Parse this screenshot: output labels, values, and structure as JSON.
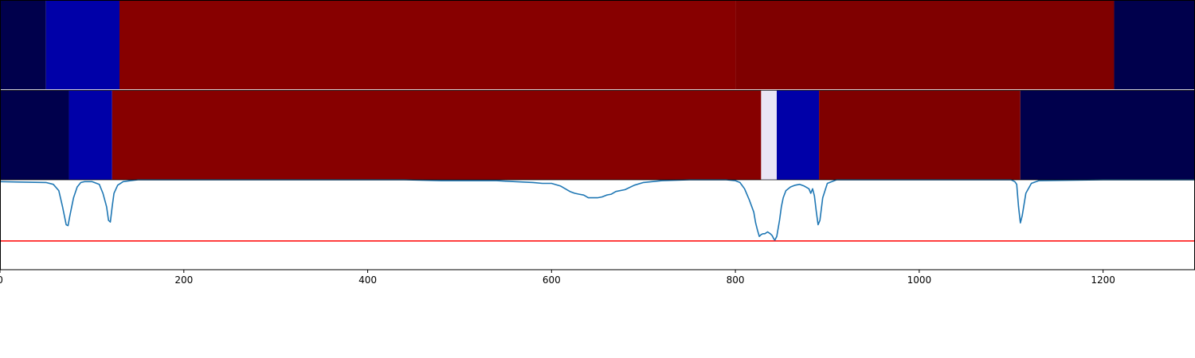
{
  "chart_data": [
    {
      "type": "heatmap",
      "xlim": [
        0,
        1300
      ],
      "segments": [
        {
          "start": 0,
          "end": 50,
          "color": "#00004c"
        },
        {
          "start": 50,
          "end": 130,
          "color": "#0000a8"
        },
        {
          "start": 130,
          "end": 800,
          "color": "#870000"
        },
        {
          "start": 800,
          "end": 1212,
          "color": "#7f0000"
        },
        {
          "start": 1212,
          "end": 1300,
          "color": "#00004c"
        }
      ]
    },
    {
      "type": "heatmap",
      "xlim": [
        0,
        1300
      ],
      "segments": [
        {
          "start": 0,
          "end": 75,
          "color": "#00004c"
        },
        {
          "start": 75,
          "end": 122,
          "color": "#0000a8"
        },
        {
          "start": 122,
          "end": 828,
          "color": "#870000"
        },
        {
          "start": 828,
          "end": 845,
          "color": "#eae6f5"
        },
        {
          "start": 845,
          "end": 891,
          "color": "#0000a8"
        },
        {
          "start": 891,
          "end": 1110,
          "color": "#7f0000"
        },
        {
          "start": 1110,
          "end": 1300,
          "color": "#00004c"
        }
      ]
    },
    {
      "type": "line",
      "xlim": [
        0,
        1300
      ],
      "ylim": [
        -1.0,
        0.0
      ],
      "x_ticks": [
        0,
        200,
        400,
        600,
        800,
        1000,
        1200
      ],
      "x_tick_labels": [
        "0",
        "200",
        "400",
        "600",
        "800",
        "1000",
        "1200"
      ],
      "threshold": {
        "value": -0.68,
        "color": "#ff0000"
      },
      "series": [
        {
          "color": "#1f77b4",
          "x": [
            0,
            20,
            50,
            58,
            64,
            68,
            72,
            74,
            76,
            80,
            84,
            88,
            92,
            100,
            108,
            112,
            116,
            118,
            120,
            122,
            124,
            128,
            134,
            142,
            150,
            300,
            440,
            480,
            540,
            560,
            580,
            590,
            600,
            610,
            620,
            625,
            630,
            635,
            640,
            645,
            650,
            655,
            660,
            665,
            670,
            680,
            690,
            700,
            720,
            750,
            790,
            800,
            805,
            810,
            815,
            820,
            822,
            824,
            826,
            828,
            830,
            832,
            835,
            838,
            840,
            842,
            843,
            845,
            848,
            850,
            852,
            855,
            860,
            865,
            870,
            875,
            880,
            882,
            884,
            886,
            888,
            890,
            892,
            895,
            900,
            910,
            1000,
            1100,
            1104,
            1106,
            1108,
            1110,
            1112,
            1116,
            1122,
            1130,
            1200,
            1300
          ],
          "y": [
            -0.02,
            -0.025,
            -0.03,
            -0.05,
            -0.12,
            -0.3,
            -0.5,
            -0.51,
            -0.4,
            -0.2,
            -0.08,
            -0.03,
            -0.02,
            -0.02,
            -0.05,
            -0.15,
            -0.3,
            -0.45,
            -0.47,
            -0.3,
            -0.15,
            -0.06,
            -0.02,
            -0.01,
            0.0,
            0.0,
            0.0,
            -0.01,
            -0.01,
            -0.02,
            -0.03,
            -0.04,
            -0.04,
            -0.07,
            -0.13,
            -0.15,
            -0.16,
            -0.17,
            -0.2,
            -0.2,
            -0.2,
            -0.19,
            -0.17,
            -0.16,
            -0.13,
            -0.11,
            -0.06,
            -0.03,
            -0.01,
            0.0,
            0.0,
            -0.01,
            -0.03,
            -0.1,
            -0.22,
            -0.36,
            -0.48,
            -0.56,
            -0.63,
            -0.61,
            -0.6,
            -0.6,
            -0.58,
            -0.6,
            -0.62,
            -0.66,
            -0.67,
            -0.63,
            -0.45,
            -0.3,
            -0.2,
            -0.12,
            -0.08,
            -0.06,
            -0.05,
            -0.07,
            -0.1,
            -0.15,
            -0.1,
            -0.18,
            -0.35,
            -0.5,
            -0.45,
            -0.2,
            -0.04,
            0.0,
            0.0,
            0.0,
            -0.02,
            -0.05,
            -0.3,
            -0.48,
            -0.4,
            -0.15,
            -0.04,
            -0.01,
            0.0,
            0.0
          ]
        }
      ]
    }
  ]
}
